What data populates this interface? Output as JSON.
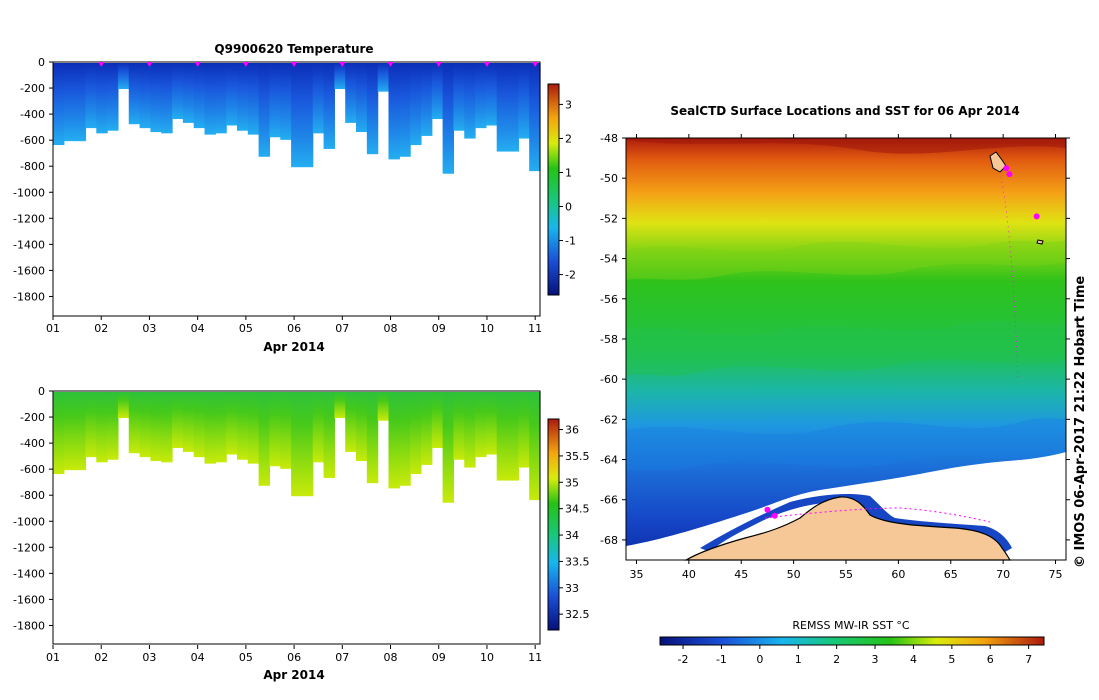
{
  "colors": {
    "ocean_hi": "#8b1010",
    "ocean_lo": "#0a1a8a",
    "land": "#f6c897",
    "ice": "#ffffff",
    "marker": "#ff00ff"
  },
  "chart_data": [
    {
      "type": "heatmap",
      "title": "Q9900620  Temperature",
      "xlabel": "Apr 2014",
      "x_ticks": [
        "01",
        "02",
        "03",
        "04",
        "05",
        "06",
        "07",
        "08",
        "09",
        "10",
        "11"
      ],
      "y_ticks": [
        "0",
        "-200",
        "-400",
        "-600",
        "-800",
        "-1000",
        "-1200",
        "-1400",
        "-1600",
        "-1800"
      ],
      "ylim": [
        -1950,
        0
      ],
      "xlim": [
        1,
        11.1
      ],
      "colorbar_ticks": [
        "3",
        "2",
        "1",
        "0",
        "-1",
        "-2"
      ],
      "colorbar_range": [
        -2.6,
        3.6
      ],
      "surface_value": -2.0,
      "deep_value": -1.2,
      "profile_days": [
        2,
        3,
        4,
        5,
        6,
        7,
        8,
        9,
        10,
        11
      ],
      "profile_bottom_depths": [
        -630,
        -600,
        -600,
        -500,
        -540,
        -520,
        -200,
        -470,
        -500,
        -530,
        -540,
        -430,
        -460,
        -500,
        -550,
        -540,
        -480,
        -520,
        -550,
        -720,
        -570,
        -590,
        -800,
        -800,
        -540,
        -660,
        -200,
        -460,
        -530,
        -700,
        -220,
        -740,
        -720,
        -630,
        -560,
        -430,
        -850,
        -520,
        -580,
        -500,
        -480,
        -680,
        -680,
        -580,
        -830
      ]
    },
    {
      "type": "heatmap",
      "title": "",
      "xlabel": "Apr 2014",
      "x_ticks": [
        "01",
        "02",
        "03",
        "04",
        "05",
        "06",
        "07",
        "08",
        "09",
        "10",
        "11"
      ],
      "y_ticks": [
        "0",
        "-200",
        "-400",
        "-600",
        "-800",
        "-1000",
        "-1200",
        "-1400",
        "-1600",
        "-1800"
      ],
      "ylim": [
        -1950,
        0
      ],
      "xlim": [
        1,
        11.1
      ],
      "colorbar_ticks": [
        "36",
        "35.5",
        "35",
        "34.5",
        "34",
        "33.5",
        "33",
        "32.5"
      ],
      "colorbar_range": [
        32.2,
        36.2
      ],
      "surface_value": 33.9,
      "deep_value": 34.6,
      "profile_bottom_depths": [
        -630,
        -600,
        -600,
        -500,
        -540,
        -520,
        -200,
        -470,
        -500,
        -530,
        -540,
        -430,
        -460,
        -500,
        -550,
        -540,
        -480,
        -520,
        -550,
        -720,
        -570,
        -590,
        -800,
        -800,
        -540,
        -660,
        -200,
        -460,
        -530,
        -700,
        -220,
        -740,
        -720,
        -630,
        -560,
        -430,
        -850,
        -520,
        -580,
        -500,
        -480,
        -680,
        -680,
        -580,
        -830
      ]
    },
    {
      "type": "heatmap",
      "title": "SealCTD Surface Locations and SST for 06 Apr 2014",
      "x_ticks": [
        "35",
        "40",
        "45",
        "50",
        "55",
        "60",
        "65",
        "70",
        "75"
      ],
      "y_ticks": [
        "-48",
        "-50",
        "-52",
        "-54",
        "-56",
        "-58",
        "-60",
        "-62",
        "-64",
        "-66",
        "-68"
      ],
      "xlim": [
        34,
        76
      ],
      "ylim": [
        -69,
        -48
      ],
      "colorbar_label": "REMSS MW-IR SST °C",
      "colorbar_ticks": [
        "-2",
        "-1",
        "0",
        "1",
        "2",
        "3",
        "4",
        "5",
        "6",
        "7"
      ],
      "colorbar_range": [
        -2.6,
        7.4
      ],
      "track_points": [
        [
          48.2,
          -66.8
        ],
        [
          47.5,
          -66.5
        ],
        [
          70.3,
          -49.5
        ],
        [
          70.6,
          -49.8
        ],
        [
          73.2,
          -51.9
        ]
      ]
    }
  ],
  "footer": {
    "copyright": "© IMOS 06-Apr-2017 21:22 Hobart Time"
  }
}
